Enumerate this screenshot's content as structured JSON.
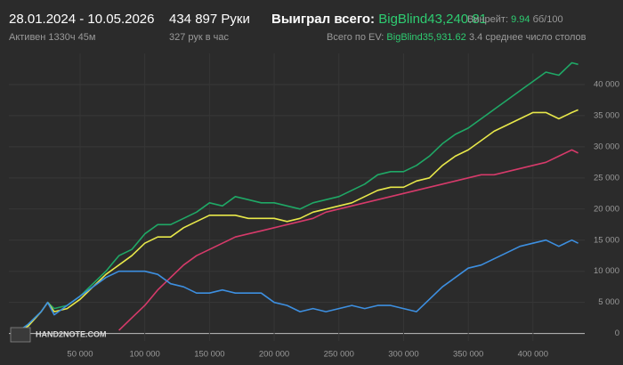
{
  "header": {
    "date_range": "28.01.2024 - 10.05.2026",
    "active": "Активен 1330ч 45м",
    "hands": "434 897 Руки",
    "hands_per_hour": "327 рук в час",
    "won_label": "Выиграл всего:",
    "won_value": "BigBlind43,240.81",
    "winrate_label": "Винрейт:",
    "winrate_value": "9.94",
    "winrate_unit": "бб/100",
    "ev_label": "Всего по EV:",
    "ev_value": "BigBlind35,931.62",
    "tables": "3.4 среднее число столов",
    "watermark": "HAND2NOTE.COM"
  },
  "chart_data": {
    "type": "line",
    "grid": true,
    "x": [
      0,
      10000,
      20000,
      25000,
      30000,
      40000,
      50000,
      60000,
      70000,
      80000,
      90000,
      100000,
      110000,
      120000,
      130000,
      140000,
      150000,
      160000,
      170000,
      180000,
      190000,
      200000,
      210000,
      220000,
      230000,
      240000,
      250000,
      260000,
      270000,
      280000,
      290000,
      300000,
      310000,
      320000,
      330000,
      340000,
      350000,
      360000,
      370000,
      380000,
      390000,
      400000,
      410000,
      420000,
      430000,
      434897
    ],
    "series": [
      {
        "color": "#1fa866",
        "values": [
          0,
          1500,
          3500,
          5000,
          4000,
          4500,
          6000,
          8000,
          10000,
          12500,
          13500,
          16000,
          17500,
          17500,
          18500,
          19500,
          21000,
          20500,
          22000,
          21500,
          21000,
          21000,
          20500,
          20000,
          21000,
          21500,
          22000,
          23000,
          24000,
          25500,
          26000,
          26000,
          27000,
          28500,
          30500,
          32000,
          33000,
          34500,
          36000,
          37500,
          39000,
          40500,
          42000,
          41500,
          43500,
          43241
        ]
      },
      {
        "color": "#e8e84a",
        "values": [
          0,
          1200,
          3500,
          5000,
          3500,
          4000,
          5500,
          7500,
          9500,
          11000,
          12500,
          14500,
          15500,
          15500,
          17000,
          18000,
          19000,
          19000,
          19000,
          18500,
          18500,
          18500,
          18000,
          18500,
          19500,
          20000,
          20500,
          21000,
          22000,
          23000,
          23500,
          23500,
          24500,
          25000,
          27000,
          28500,
          29500,
          31000,
          32500,
          33500,
          34500,
          35500,
          35500,
          34500,
          35500,
          35932
        ]
      },
      {
        "color": "#d63a6a",
        "values": [
          null,
          null,
          null,
          null,
          null,
          null,
          null,
          null,
          null,
          500,
          2500,
          4500,
          7000,
          9000,
          11000,
          12500,
          13500,
          14500,
          15500,
          16000,
          16500,
          17000,
          17500,
          18000,
          18500,
          19500,
          20000,
          20500,
          21000,
          21500,
          22000,
          22500,
          23000,
          23500,
          24000,
          24500,
          25000,
          25500,
          25500,
          26000,
          26500,
          27000,
          27500,
          28500,
          29500,
          29000
        ]
      },
      {
        "color": "#3d8fe0",
        "values": [
          0,
          1500,
          3500,
          5000,
          3000,
          4500,
          6000,
          7500,
          9000,
          10000,
          10000,
          10000,
          9500,
          8000,
          7500,
          6500,
          6500,
          7000,
          6500,
          6500,
          6500,
          5000,
          4500,
          3500,
          4000,
          3500,
          4000,
          4500,
          4000,
          4500,
          4500,
          4000,
          3500,
          5500,
          7500,
          9000,
          10500,
          11000,
          12000,
          13000,
          14000,
          14500,
          15000,
          14000,
          15000,
          14500
        ]
      }
    ],
    "xlim": [
      -5000,
      440000
    ],
    "ylim": [
      -1200,
      45000
    ],
    "xticks": [
      {
        "value": 50000,
        "label": "50 000"
      },
      {
        "value": 100000,
        "label": "100 000"
      },
      {
        "value": 150000,
        "label": "150 000"
      },
      {
        "value": 200000,
        "label": "200 000"
      },
      {
        "value": 250000,
        "label": "250 000"
      },
      {
        "value": 300000,
        "label": "300 000"
      },
      {
        "value": 350000,
        "label": "350 000"
      },
      {
        "value": 400000,
        "label": "400 000"
      }
    ],
    "yticks": [
      0,
      {
        "value": 5000,
        "label": "5 000"
      },
      {
        "value": 10000,
        "label": "10 000"
      },
      {
        "value": 15000,
        "label": "15 000"
      },
      {
        "value": 20000,
        "label": "20 000"
      },
      {
        "value": 25000,
        "label": "25 000"
      },
      {
        "value": 30000,
        "label": "30 000"
      },
      {
        "value": 35000,
        "label": "35 000"
      },
      {
        "value": 40000,
        "label": "40 000"
      }
    ]
  }
}
